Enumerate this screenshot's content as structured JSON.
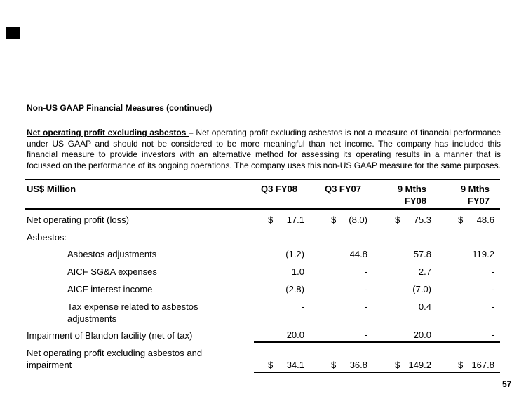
{
  "slide": {
    "heading": "Non-US GAAP Financial Measures (continued)",
    "page_number": "57",
    "logo_color": "#000000"
  },
  "paragraph": {
    "lead": "Net operating profit excluding asbestos ",
    "dash": "–",
    "body": " Net operating profit excluding asbestos is not a measure of financial performance under US GAAP and should not be considered to be more meaningful than net income. The company has included this financial measure to provide investors with an alternative method for assessing its operating results in a manner that is focussed on the performance of its ongoing operations. The company uses this non-US GAAP measure for the same purposes."
  },
  "table": {
    "unit_label": "US$ Million",
    "columns": [
      {
        "line1": "Q3 FY08",
        "line2": ""
      },
      {
        "line1": "Q3 FY07",
        "line2": ""
      },
      {
        "line1": "9 Mths",
        "line2": "FY08"
      },
      {
        "line1": "9 Mths",
        "line2": "FY07"
      }
    ],
    "rows": [
      {
        "label": "Net operating profit (loss)",
        "values": [
          {
            "cur": "$",
            "amt": "17.1"
          },
          {
            "cur": "$",
            "amt": "(8.0)"
          },
          {
            "cur": "$",
            "amt": "75.3"
          },
          {
            "cur": "$",
            "amt": "48.6"
          }
        ]
      },
      {
        "label": "Asbestos:"
      },
      {
        "label": "Asbestos adjustments",
        "values": [
          {
            "amt": "(1.2)"
          },
          {
            "amt": "44.8"
          },
          {
            "amt": "57.8"
          },
          {
            "amt": "119.2"
          }
        ]
      },
      {
        "label": "AICF SG&A expenses",
        "values": [
          {
            "amt": "1.0"
          },
          {
            "amt": "-"
          },
          {
            "amt": "2.7"
          },
          {
            "amt": "-"
          }
        ]
      },
      {
        "label": "AICF interest income",
        "values": [
          {
            "amt": "(2.8)"
          },
          {
            "amt": "-"
          },
          {
            "amt": "(7.0)"
          },
          {
            "amt": "-"
          }
        ]
      },
      {
        "label": "Tax expense related to asbestos adjustments",
        "values": [
          {
            "amt": "-"
          },
          {
            "amt": "-"
          },
          {
            "amt": "0.4"
          },
          {
            "amt": "-"
          }
        ]
      },
      {
        "label": "Impairment of Blandon facility (net of tax)",
        "values": [
          {
            "amt": "20.0"
          },
          {
            "amt": "-"
          },
          {
            "amt": "20.0"
          },
          {
            "amt": "-"
          }
        ]
      },
      {
        "label": "Net operating profit excluding asbestos and impairment",
        "values": [
          {
            "cur": "$",
            "amt": "34.1"
          },
          {
            "cur": "$",
            "amt": "36.8"
          },
          {
            "cur": "$",
            "amt": "149.2"
          },
          {
            "cur": "$",
            "amt": "167.8"
          }
        ]
      }
    ]
  }
}
